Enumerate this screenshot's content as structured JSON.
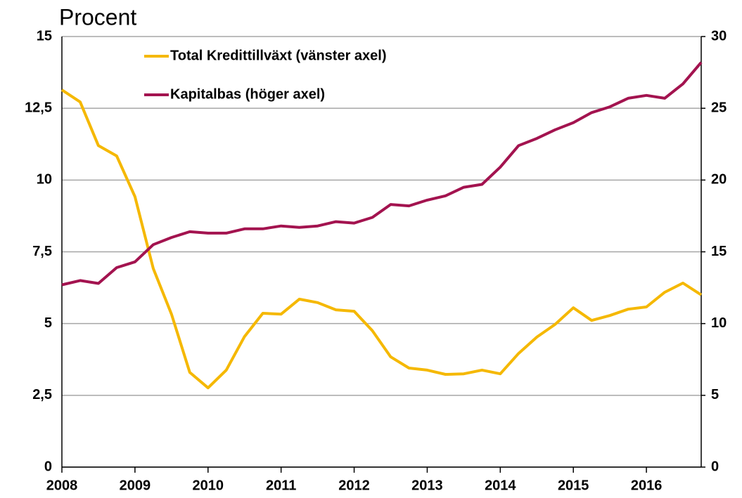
{
  "chart_data": {
    "type": "line",
    "title": "Procent",
    "x": [
      2008,
      2008.25,
      2008.5,
      2008.75,
      2009,
      2009.25,
      2009.5,
      2009.75,
      2010,
      2010.25,
      2010.5,
      2010.75,
      2011,
      2011.25,
      2011.5,
      2011.75,
      2012,
      2012.25,
      2012.5,
      2012.75,
      2013,
      2013.25,
      2013.5,
      2013.75,
      2014,
      2014.25,
      2014.5,
      2014.75,
      2015,
      2015.25,
      2015.5,
      2015.75,
      2016,
      2016.25,
      2016.5,
      2016.75
    ],
    "series": [
      {
        "name": "Total Kredittillväxt (vänster axel)",
        "color": "#f5b800",
        "axis": "y",
        "values": [
          13.14,
          12.72,
          11.2,
          10.84,
          9.42,
          6.92,
          5.33,
          3.3,
          2.76,
          3.38,
          4.55,
          5.36,
          5.33,
          5.85,
          5.73,
          5.48,
          5.43,
          4.75,
          3.84,
          3.45,
          3.38,
          3.23,
          3.25,
          3.38,
          3.25,
          3.96,
          4.53,
          4.97,
          5.55,
          5.11,
          5.28,
          5.5,
          5.58,
          6.09,
          6.41,
          6.0
        ]
      },
      {
        "name": "Kapitalbas (höger axel)",
        "color": "#a3134f",
        "axis": "y2",
        "values": [
          12.7,
          13.0,
          12.8,
          13.9,
          14.3,
          15.5,
          16.0,
          16.4,
          16.3,
          16.3,
          16.6,
          16.6,
          16.8,
          16.7,
          16.8,
          17.1,
          17.0,
          17.4,
          18.3,
          18.2,
          18.6,
          18.9,
          19.5,
          19.7,
          20.9,
          22.4,
          22.9,
          23.5,
          24.0,
          24.7,
          25.1,
          25.7,
          25.9,
          25.7,
          26.7,
          28.2
        ]
      }
    ],
    "xlim": [
      2008,
      2016.75
    ],
    "xticks": [
      2008,
      2009,
      2010,
      2011,
      2012,
      2013,
      2014,
      2015,
      2016
    ],
    "ylim": [
      0,
      15
    ],
    "yticks": [
      0,
      {
        "value": 2.5,
        "label": "2,5"
      },
      5,
      {
        "value": 7.5,
        "label": "7,5"
      },
      10,
      {
        "value": 12.5,
        "label": "12,5"
      },
      15
    ],
    "y2lim": [
      0,
      30
    ],
    "y2ticks": [
      0,
      5,
      10,
      15,
      20,
      25,
      30
    ],
    "grid": true
  }
}
